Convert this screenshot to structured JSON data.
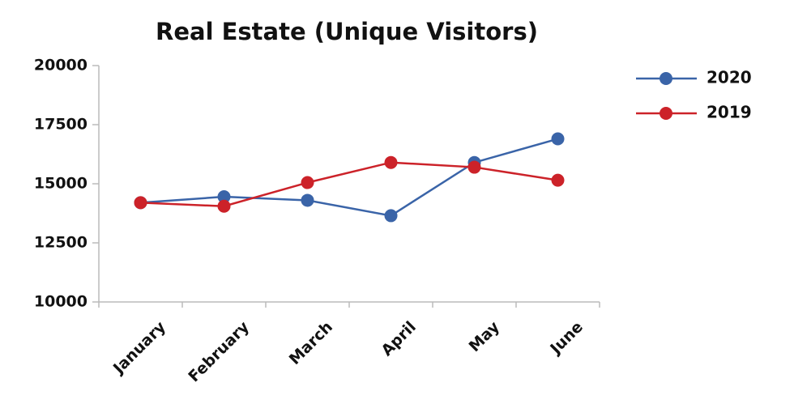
{
  "chart_data": {
    "type": "line",
    "title": "Real Estate (Unique Visitors)",
    "categories": [
      "January",
      "February",
      "March",
      "April",
      "May",
      "June"
    ],
    "series": [
      {
        "name": "2020",
        "color": "#3a64a8",
        "values": [
          14200,
          14450,
          14300,
          13650,
          15900,
          16900
        ]
      },
      {
        "name": "2019",
        "color": "#cc2229",
        "values": [
          14200,
          14050,
          15050,
          15900,
          15700,
          15150
        ]
      }
    ],
    "ylim": [
      10000,
      20000
    ],
    "yticks": [
      10000,
      12500,
      15000,
      17500,
      20000
    ],
    "grid": false,
    "legend": "top-right"
  }
}
